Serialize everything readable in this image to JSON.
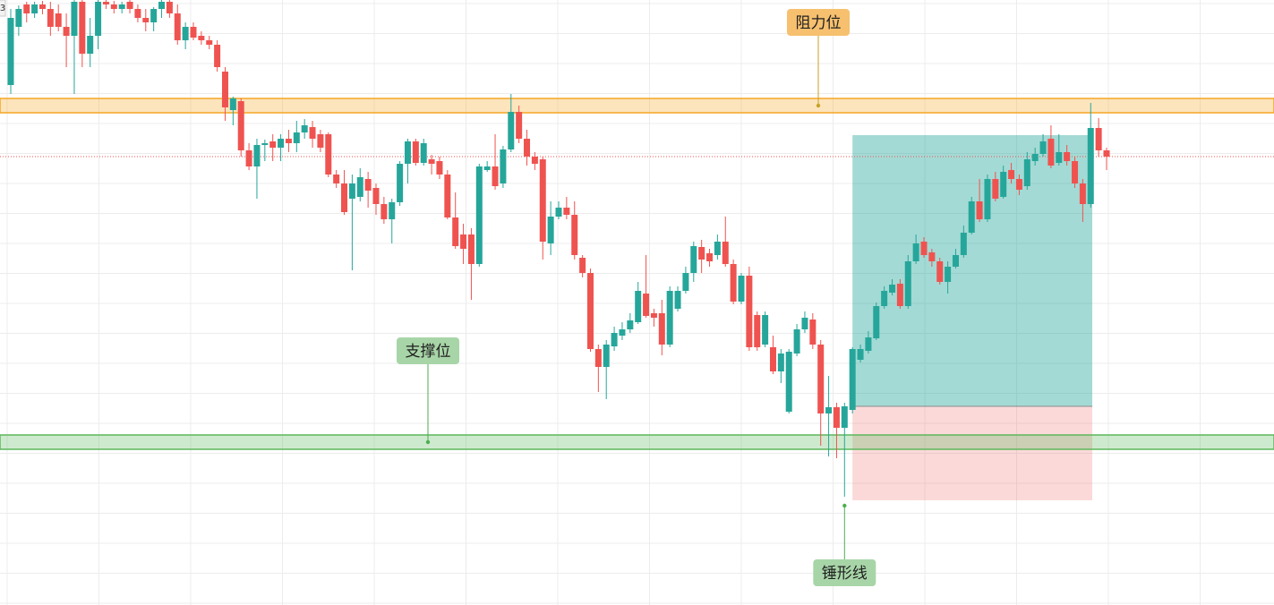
{
  "chart_data": {
    "type": "candlestick",
    "edge_label": "3",
    "up_color": "#26a69a",
    "down_color": "#ef5350",
    "ylim": [
      0,
      676
    ],
    "open": [
      581,
      646,
      671,
      661,
      671,
      666,
      661,
      646,
      636,
      674,
      616,
      636,
      674,
      671,
      666,
      674,
      666,
      656,
      651,
      666,
      674,
      661,
      631,
      646,
      636,
      631,
      626,
      596,
      553,
      563,
      508,
      490,
      514,
      518,
      511,
      521,
      516,
      528,
      534,
      526,
      526,
      481,
      471,
      454,
      456,
      476,
      466,
      448,
      431,
      450,
      493,
      518,
      494,
      498,
      496,
      481,
      433,
      414,
      414,
      381,
      486,
      490,
      471,
      509,
      551,
      521,
      501,
      498,
      404,
      434,
      444,
      436,
      388,
      371,
      286,
      266,
      289,
      301,
      308,
      316,
      348,
      326,
      326,
      291,
      331,
      351,
      371,
      400,
      393,
      391,
      406,
      381,
      339,
      368,
      324,
      291,
      288,
      261,
      216,
      281,
      308,
      319,
      291,
      214,
      221,
      198,
      218,
      274,
      284,
      298,
      334,
      349,
      359,
      334,
      384,
      406,
      394,
      384,
      361,
      378,
      391,
      416,
      451,
      431,
      476,
      456,
      486,
      476,
      468,
      496,
      504,
      521,
      494,
      506,
      496,
      471,
      448,
      533,
      508
    ],
    "high": [
      666,
      670,
      674,
      674,
      675,
      674,
      671,
      661,
      676,
      676,
      656,
      676,
      676,
      675,
      674,
      676,
      671,
      666,
      668,
      676,
      676,
      671,
      651,
      651,
      641,
      636,
      631,
      601,
      568,
      566,
      516,
      521,
      520,
      526,
      526,
      531,
      541,
      543,
      541,
      531,
      528,
      486,
      486,
      481,
      488,
      484,
      471,
      456,
      454,
      496,
      521,
      521,
      521,
      503,
      501,
      486,
      461,
      426,
      421,
      493,
      496,
      526,
      513,
      571,
      558,
      531,
      506,
      501,
      451,
      451,
      456,
      451,
      391,
      376,
      291,
      296,
      311,
      316,
      326,
      361,
      391,
      331,
      341,
      356,
      356,
      378,
      406,
      408,
      398,
      414,
      434,
      386,
      371,
      378,
      328,
      328,
      301,
      286,
      286,
      314,
      328,
      326,
      296,
      256,
      226,
      226,
      288,
      291,
      306,
      338,
      356,
      364,
      364,
      391,
      414,
      411,
      398,
      388,
      384,
      398,
      424,
      456,
      476,
      481,
      484,
      491,
      494,
      481,
      506,
      511,
      526,
      536,
      526,
      514,
      501,
      476,
      561,
      544,
      511
    ],
    "low": [
      571,
      636,
      651,
      656,
      660,
      636,
      641,
      601,
      571,
      601,
      601,
      621,
      666,
      661,
      661,
      661,
      651,
      641,
      641,
      656,
      656,
      626,
      621,
      631,
      626,
      621,
      596,
      541,
      536,
      501,
      486,
      454,
      496,
      496,
      496,
      506,
      506,
      521,
      511,
      506,
      478,
      466,
      436,
      374,
      451,
      444,
      436,
      426,
      404,
      446,
      471,
      491,
      491,
      481,
      476,
      431,
      398,
      381,
      341,
      378,
      484,
      464,
      466,
      506,
      516,
      491,
      486,
      386,
      391,
      431,
      431,
      386,
      366,
      283,
      238,
      230,
      284,
      296,
      304,
      314,
      321,
      311,
      279,
      288,
      328,
      348,
      361,
      371,
      378,
      386,
      378,
      336,
      336,
      284,
      284,
      288,
      258,
      248,
      214,
      278,
      304,
      286,
      178,
      166,
      164,
      121,
      214,
      271,
      281,
      296,
      331,
      346,
      331,
      331,
      381,
      388,
      378,
      358,
      348,
      376,
      388,
      414,
      428,
      428,
      451,
      454,
      471,
      458,
      464,
      491,
      501,
      488,
      491,
      491,
      466,
      428,
      444,
      501,
      486
    ],
    "close": [
      656,
      666,
      661,
      671,
      666,
      646,
      646,
      636,
      674,
      616,
      636,
      674,
      671,
      666,
      671,
      666,
      656,
      651,
      666,
      674,
      661,
      631,
      646,
      634,
      631,
      626,
      601,
      556,
      566,
      508,
      490,
      514,
      516,
      511,
      521,
      516,
      528,
      536,
      521,
      511,
      481,
      471,
      439,
      471,
      478,
      463,
      448,
      431,
      450,
      493,
      518,
      494,
      516,
      493,
      481,
      433,
      401,
      398,
      381,
      490,
      490,
      468,
      509,
      551,
      521,
      501,
      493,
      406,
      434,
      444,
      436,
      391,
      371,
      286,
      266,
      291,
      304,
      308,
      318,
      351,
      323,
      321,
      291,
      351,
      351,
      371,
      401,
      386,
      384,
      406,
      381,
      339,
      368,
      288,
      288,
      324,
      261,
      281,
      283,
      308,
      321,
      291,
      214,
      221,
      198,
      222,
      286,
      286,
      299,
      334,
      351,
      358,
      334,
      384,
      404,
      391,
      384,
      361,
      378,
      391,
      416,
      451,
      431,
      476,
      454,
      484,
      476,
      464,
      498,
      504,
      518,
      491,
      506,
      496,
      471,
      448,
      533,
      508,
      501
    ],
    "resistance": {
      "label": "阻力位",
      "low": 550,
      "high": 566,
      "color": "#f5a623"
    },
    "support": {
      "label": "支撑位",
      "low": 174,
      "high": 190,
      "color": "#5cb85c"
    },
    "hammer": {
      "label": "锤形线",
      "index": 105
    },
    "position": {
      "start": 105,
      "end": 136,
      "entry": 222,
      "target": 525,
      "stop": 117
    }
  }
}
